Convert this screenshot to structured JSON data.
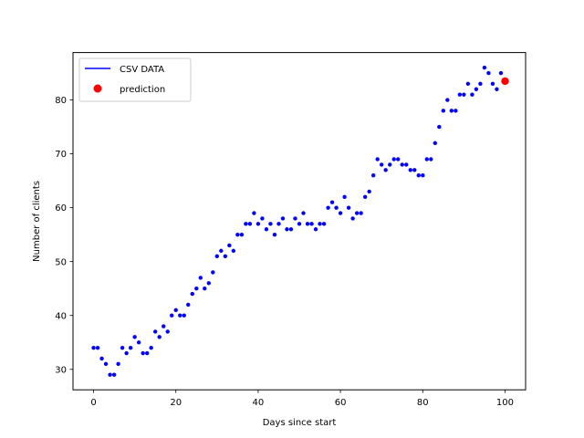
{
  "chart_data": {
    "type": "scatter",
    "title": "",
    "xlabel": "Days since start",
    "ylabel": "Number of clients",
    "xlim": [
      -5,
      105
    ],
    "ylim": [
      26.2,
      88.8
    ],
    "xticks": [
      0,
      20,
      40,
      60,
      80,
      100
    ],
    "yticks": [
      30,
      40,
      50,
      60,
      70,
      80
    ],
    "grid": false,
    "legend_position": "top-left",
    "legend": [
      {
        "label": "CSV DATA",
        "style": "line",
        "color": "#0000ff"
      },
      {
        "label": "prediction",
        "style": "point",
        "color": "#ff0000"
      }
    ],
    "series": [
      {
        "name": "CSV DATA",
        "color": "#0000ff",
        "marker_size": "small",
        "x": [
          0,
          1,
          2,
          3,
          4,
          5,
          6,
          7,
          8,
          9,
          10,
          11,
          12,
          13,
          14,
          15,
          16,
          17,
          18,
          19,
          20,
          21,
          22,
          23,
          24,
          25,
          26,
          27,
          28,
          29,
          30,
          31,
          32,
          33,
          34,
          35,
          36,
          37,
          38,
          39,
          40,
          41,
          42,
          43,
          44,
          45,
          46,
          47,
          48,
          49,
          50,
          51,
          52,
          53,
          54,
          55,
          56,
          57,
          58,
          59,
          60,
          61,
          62,
          63,
          64,
          65,
          66,
          67,
          68,
          69,
          70,
          71,
          72,
          73,
          74,
          75,
          76,
          77,
          78,
          79,
          80,
          81,
          82,
          83,
          84,
          85,
          86,
          87,
          88,
          89,
          90,
          91,
          92,
          93,
          94,
          95,
          96,
          97,
          98,
          99
        ],
        "y": [
          34,
          34,
          32,
          31,
          29,
          29,
          31,
          34,
          33,
          34,
          36,
          35,
          33,
          33,
          34,
          37,
          36,
          38,
          37,
          40,
          41,
          40,
          40,
          42,
          44,
          45,
          47,
          45,
          46,
          48,
          51,
          52,
          51,
          53,
          52,
          55,
          55,
          57,
          57,
          59,
          57,
          58,
          56,
          57,
          55,
          57,
          58,
          56,
          56,
          58,
          57,
          59,
          57,
          57,
          56,
          57,
          57,
          60,
          61,
          60,
          59,
          62,
          60,
          58,
          59,
          59,
          62,
          63,
          66,
          69,
          68,
          67,
          68,
          69,
          69,
          68,
          68,
          67,
          67,
          66,
          66,
          69,
          69,
          72,
          75,
          78,
          80,
          78,
          78,
          81,
          81,
          83,
          81,
          82,
          83,
          86,
          85,
          83,
          82,
          85
        ]
      },
      {
        "name": "prediction",
        "color": "#ff0000",
        "marker_size": "large",
        "x": [
          100
        ],
        "y": [
          83.5
        ]
      }
    ]
  }
}
